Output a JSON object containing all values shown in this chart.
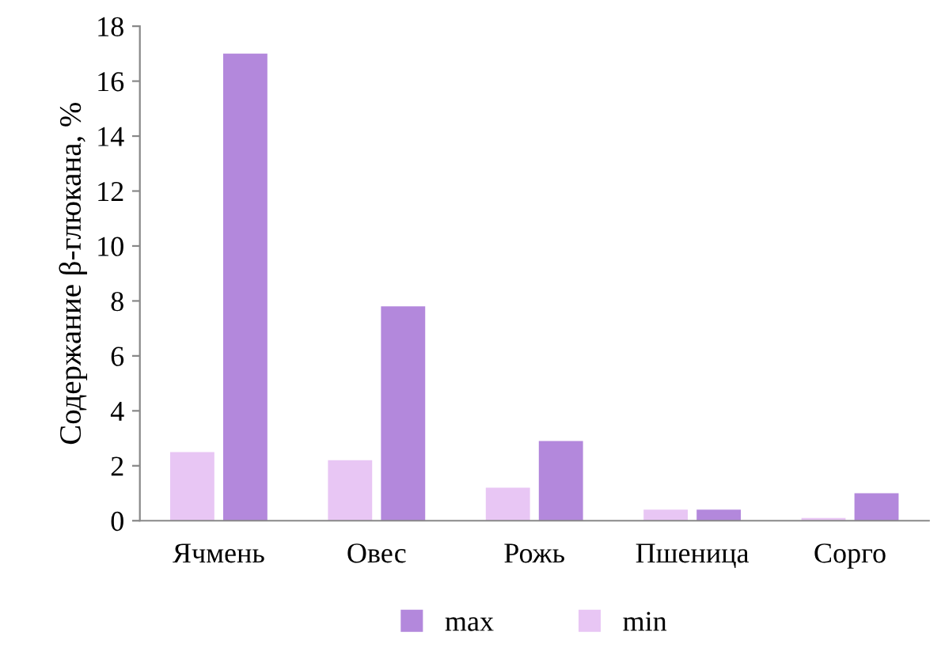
{
  "chart_data": {
    "type": "bar",
    "ylabel": "Содержание β-глюкана, %",
    "categories": [
      "Ячмень",
      "Овес",
      "Рожь",
      "Пшеница",
      "Сорго"
    ],
    "series": [
      {
        "name": "min",
        "color": "#e8c6f4",
        "values": [
          2.5,
          2.2,
          1.2,
          0.4,
          0.1
        ]
      },
      {
        "name": "max",
        "color": "#b388dc",
        "values": [
          17.0,
          7.8,
          2.9,
          0.4,
          1.0
        ]
      }
    ],
    "ylim": [
      0,
      18
    ],
    "yticks": [
      0,
      2,
      4,
      6,
      8,
      10,
      12,
      14,
      16,
      18
    ],
    "grid": false,
    "legend": "bottom"
  }
}
